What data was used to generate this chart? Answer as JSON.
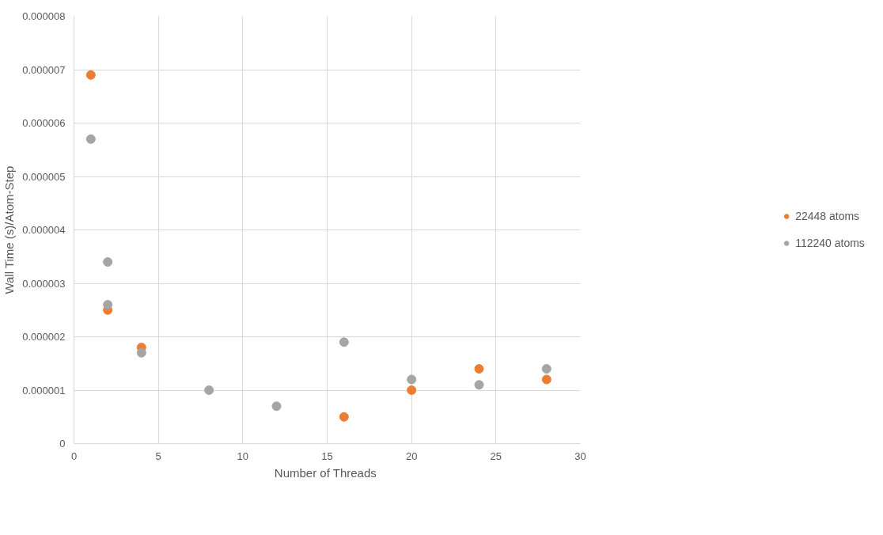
{
  "chart_data": {
    "type": "scatter",
    "xlabel": "Number  of Threads",
    "ylabel": "Wall Time (s)/Atom-Step",
    "xlim": [
      0,
      30
    ],
    "xticks": [
      0,
      5,
      10,
      15,
      20,
      25,
      30
    ],
    "ylim": [
      0,
      8e-06
    ],
    "yticks": [
      {
        "value": 0,
        "label": "0"
      },
      {
        "value": 1e-06,
        "label": "0.000001"
      },
      {
        "value": 2e-06,
        "label": "0.000002"
      },
      {
        "value": 3e-06,
        "label": "0.000003"
      },
      {
        "value": 4e-06,
        "label": "0.000004"
      },
      {
        "value": 5e-06,
        "label": "0.000005"
      },
      {
        "value": 6e-06,
        "label": "0.000006"
      },
      {
        "value": 7e-06,
        "label": "0.000007"
      },
      {
        "value": 8e-06,
        "label": "0.000008"
      }
    ],
    "grid": true,
    "legend": "right",
    "marker": "circle",
    "series": [
      {
        "name": "22448 atoms",
        "color": "#ed7d31",
        "x": [
          1,
          2,
          4,
          8,
          12,
          16,
          20,
          24,
          28
        ],
        "values": [
          6.9e-06,
          2.5e-06,
          1.8e-06,
          null,
          null,
          5e-07,
          1e-06,
          1.4e-06,
          1.2e-06
        ]
      },
      {
        "name": "112240 atoms",
        "color": "#a5a5a5",
        "x": [
          1,
          2,
          2,
          4,
          8,
          12,
          16,
          20,
          24,
          28
        ],
        "values": [
          5.7e-06,
          3.4e-06,
          2.6e-06,
          1.7e-06,
          1e-06,
          7e-07,
          1.9e-06,
          1.2e-06,
          1.1e-06,
          1.4e-06
        ]
      }
    ]
  }
}
